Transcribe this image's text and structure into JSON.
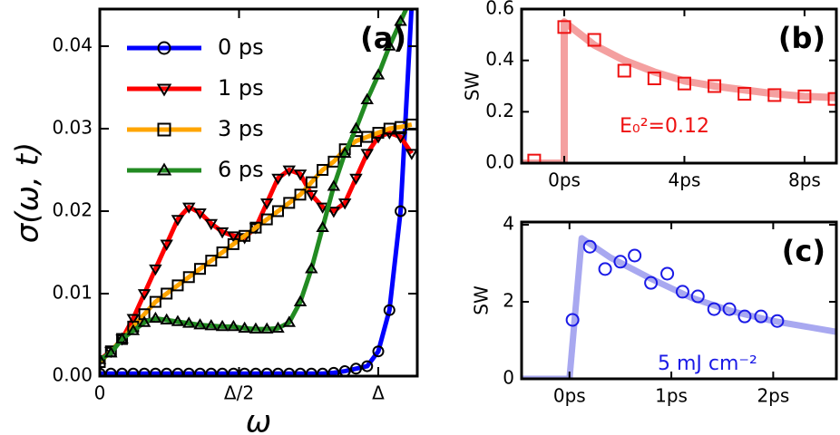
{
  "chart_data": [
    {
      "type": "line",
      "panel_label": "(a)",
      "x_label": "ω",
      "y_label": "σ(ω, t)",
      "legend": "upper left",
      "xlim": [
        0,
        1.14
      ],
      "ylim": [
        0,
        0.0445
      ],
      "xticks": [
        0,
        {
          "value": 0.5,
          "label": "Δ/2"
        },
        {
          "value": 1,
          "label": "Δ"
        }
      ],
      "yticks": [
        {
          "value": 0,
          "label": "0.00"
        },
        {
          "value": 0.01,
          "label": "0.01"
        },
        {
          "value": 0.02,
          "label": "0.02"
        },
        {
          "value": 0.03,
          "label": "0.03"
        },
        {
          "value": 0.04,
          "label": "0.04"
        }
      ],
      "x": [
        0,
        0.04,
        0.08,
        0.12,
        0.16,
        0.2,
        0.24,
        0.28,
        0.32,
        0.36,
        0.4,
        0.44,
        0.48,
        0.52,
        0.56,
        0.6,
        0.64,
        0.68,
        0.72,
        0.76,
        0.8,
        0.84,
        0.88,
        0.92,
        0.96,
        1.0,
        1.04,
        1.08,
        1.12
      ],
      "series": [
        {
          "name": "0 ps",
          "color": "#0000ff",
          "marker": "o",
          "marker_color": "#000000",
          "linewidth": 5,
          "values": [
            0.0003,
            0.0003,
            0.0003,
            0.0003,
            0.0003,
            0.0003,
            0.0003,
            0.0003,
            0.0003,
            0.0003,
            0.0003,
            0.0003,
            0.0003,
            0.0003,
            0.0003,
            0.0003,
            0.0003,
            0.0003,
            0.0003,
            0.0003,
            0.0003,
            0.0004,
            0.0006,
            0.0009,
            0.0012,
            0.003,
            0.008,
            0.02,
            0.045
          ]
        },
        {
          "name": "1 ps",
          "color": "#ff0000",
          "marker": "v",
          "marker_color": "#000000",
          "linewidth": 5,
          "values": [
            0.002,
            0.003,
            0.0045,
            0.007,
            0.01,
            0.013,
            0.016,
            0.019,
            0.0205,
            0.0198,
            0.0185,
            0.0175,
            0.017,
            0.0168,
            0.018,
            0.021,
            0.024,
            0.025,
            0.0245,
            0.022,
            0.0205,
            0.02,
            0.021,
            0.024,
            0.027,
            0.029,
            0.0295,
            0.029,
            0.027
          ]
        },
        {
          "name": "3 ps",
          "color": "#ffa500",
          "marker": "s",
          "marker_color": "#000000",
          "linewidth": 5,
          "values": [
            0.0017,
            0.003,
            0.0045,
            0.006,
            0.0075,
            0.009,
            0.01,
            0.011,
            0.012,
            0.013,
            0.014,
            0.015,
            0.016,
            0.017,
            0.018,
            0.019,
            0.02,
            0.021,
            0.022,
            0.0235,
            0.025,
            0.026,
            0.0275,
            0.0285,
            0.029,
            0.0295,
            0.03,
            0.0302,
            0.0305
          ]
        },
        {
          "name": "6 ps",
          "color": "#228b22",
          "marker": "^",
          "marker_color": "#000000",
          "linewidth": 5,
          "values": [
            0.002,
            0.0028,
            0.0045,
            0.0055,
            0.0065,
            0.007,
            0.0068,
            0.0066,
            0.0064,
            0.0062,
            0.0061,
            0.006,
            0.006,
            0.0058,
            0.0057,
            0.0057,
            0.0058,
            0.0065,
            0.009,
            0.013,
            0.018,
            0.023,
            0.027,
            0.03,
            0.0335,
            0.0365,
            0.04,
            0.043,
            0.046
          ]
        }
      ]
    },
    {
      "type": "line",
      "panel_label": "(b)",
      "y_label": "SW",
      "annotation": "E₀²=0.12",
      "annotation_color": "#ee1111",
      "xlim": [
        -1.42,
        9.06
      ],
      "ylim": [
        0,
        0.6
      ],
      "xticks": [
        {
          "value": 0,
          "label": "0ps"
        },
        {
          "value": 4,
          "label": "4ps"
        },
        {
          "value": 8,
          "label": "8ps"
        }
      ],
      "yticks": [
        {
          "value": 0,
          "label": "0.0"
        },
        {
          "value": 0.2,
          "label": "0.2"
        },
        {
          "value": 0.4,
          "label": "0.4"
        },
        {
          "value": 0.6,
          "label": "0.6"
        }
      ],
      "series": [
        {
          "color": "#f4a0a0",
          "linewidth": 8,
          "x": [
            -1.42,
            0,
            0,
            1,
            2,
            3,
            4,
            5,
            6,
            7,
            8,
            9.06
          ],
          "values": [
            0,
            0,
            0.55,
            0.46,
            0.4,
            0.355,
            0.32,
            0.3,
            0.285,
            0.27,
            0.26,
            0.255
          ]
        },
        {
          "color": "#ee1111",
          "marker": "s",
          "marker_color": "#ee1111",
          "linewidth": 0,
          "x": [
            -1,
            0,
            1,
            2,
            3,
            4,
            5,
            6,
            7,
            8,
            9
          ],
          "values": [
            0.01,
            0.53,
            0.48,
            0.36,
            0.33,
            0.31,
            0.3,
            0.27,
            0.265,
            0.26,
            0.25
          ]
        }
      ]
    },
    {
      "type": "line",
      "panel_label": "(c)",
      "y_label": "SW",
      "annotation": "5 mJ cm⁻²",
      "annotation_color": "#1a1ae6",
      "xlim": [
        -0.47,
        2.62
      ],
      "ylim": [
        0,
        4.07
      ],
      "xticks": [
        {
          "value": 0,
          "label": "0ps"
        },
        {
          "value": 1,
          "label": "1ps"
        },
        {
          "value": 2,
          "label": "2ps"
        }
      ],
      "yticks": [
        0,
        2,
        4
      ],
      "series": [
        {
          "color": "#a8a8f0",
          "linewidth": 7,
          "x": [
            -0.47,
            0,
            0.12,
            0.4,
            0.8,
            1.2,
            1.6,
            2.0,
            2.62
          ],
          "values": [
            0,
            0,
            3.65,
            3.15,
            2.6,
            2.1,
            1.75,
            1.5,
            1.22
          ]
        },
        {
          "color": "#1a1ae6",
          "marker": "o",
          "marker_color": "#1a1ae6",
          "linewidth": 0,
          "x": [
            0.03,
            0.2,
            0.35,
            0.5,
            0.64,
            0.8,
            0.96,
            1.11,
            1.26,
            1.42,
            1.57,
            1.72,
            1.88,
            2.04
          ],
          "values": [
            1.53,
            3.43,
            2.85,
            3.04,
            3.2,
            2.49,
            2.73,
            2.26,
            2.14,
            1.81,
            1.81,
            1.62,
            1.62,
            1.5
          ]
        }
      ]
    }
  ]
}
